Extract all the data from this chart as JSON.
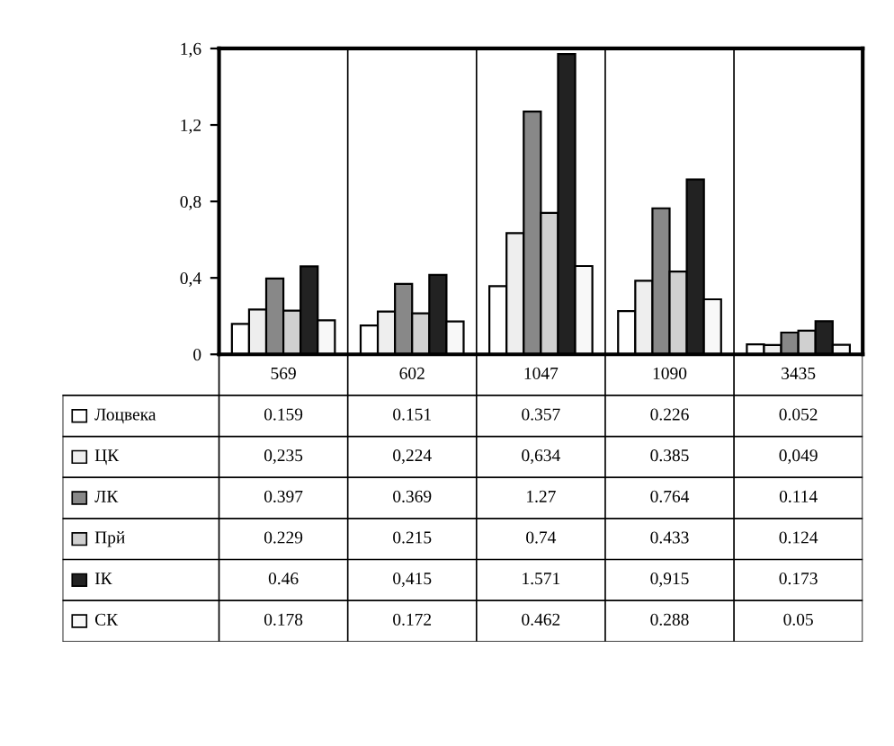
{
  "chart_data": {
    "type": "bar",
    "categories": [
      "569",
      "602",
      "1047",
      "1090",
      "3435"
    ],
    "series": [
      {
        "name": "Лоцвека",
        "color": "#ffffff",
        "values": [
          0.159,
          0.151,
          0.357,
          0.226,
          0.052
        ],
        "value_labels": [
          "0.159",
          "0.151",
          "0.357",
          "0.226",
          "0.052"
        ]
      },
      {
        "name": "ЦК",
        "color": "#eeeeee",
        "values": [
          0.235,
          0.224,
          0.634,
          0.385,
          0.049
        ],
        "value_labels": [
          "0,235",
          "0,224",
          "0,634",
          "0.385",
          "0,049"
        ]
      },
      {
        "name": "ЛК",
        "color": "#888888",
        "values": [
          0.397,
          0.369,
          1.27,
          0.764,
          0.114
        ],
        "value_labels": [
          "0.397",
          "0.369",
          "1.27",
          "0.764",
          "0.114"
        ]
      },
      {
        "name": "Прй",
        "color": "#d0d0d0",
        "values": [
          0.229,
          0.215,
          0.74,
          0.433,
          0.124
        ],
        "value_labels": [
          "0.229",
          "0.215",
          "0.74",
          "0.433",
          "0.124"
        ]
      },
      {
        "name": "ІК",
        "color": "#222222",
        "values": [
          0.46,
          0.415,
          1.571,
          0.915,
          0.173
        ],
        "value_labels": [
          "0.46",
          "0,415",
          "1.571",
          "0,915",
          "0.173"
        ]
      },
      {
        "name": "СК",
        "color": "#f8f8f8",
        "values": [
          0.178,
          0.172,
          0.462,
          0.288,
          0.05
        ],
        "value_labels": [
          "0.178",
          "0.172",
          "0.462",
          "0.288",
          "0.05"
        ]
      }
    ],
    "ylim": [
      0,
      1.6
    ],
    "yticks": [
      0,
      {
        "value": 0.4,
        "label": "0,4"
      },
      {
        "value": 0.8,
        "label": "0,8"
      },
      {
        "value": 1.2,
        "label": "1,2"
      },
      {
        "value": 1.6,
        "label": "1,6"
      }
    ],
    "legend": "bottom",
    "grid": false
  }
}
